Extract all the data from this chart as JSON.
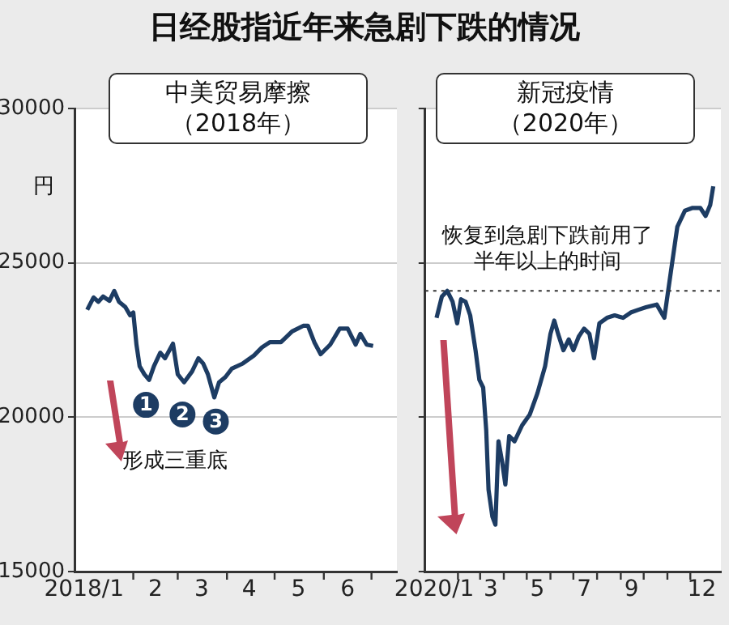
{
  "chart_data": [
    {
      "type": "line",
      "title": "日经股指近年来急剧下跌的情况",
      "subtitle": "中美贸易摩擦（2018年）",
      "ylabel": "円",
      "color": "#1d3c63",
      "x": [
        "2018-01-03",
        "2018-01-07",
        "2018-01-10",
        "2018-01-13",
        "2018-01-17",
        "2018-01-20",
        "2018-01-23",
        "2018-01-27",
        "2018-01-30",
        "2018-02-01",
        "2018-02-03",
        "2018-02-05",
        "2018-02-08",
        "2018-02-11",
        "2018-02-14",
        "2018-02-18",
        "2018-02-21",
        "2018-02-26",
        "2018-03-01",
        "2018-03-05",
        "2018-03-10",
        "2018-03-14",
        "2018-03-17",
        "2018-03-20",
        "2018-03-24",
        "2018-03-27",
        "2018-03-31",
        "2018-04-04",
        "2018-04-11",
        "2018-04-18",
        "2018-04-23",
        "2018-04-28",
        "2018-05-05",
        "2018-05-12",
        "2018-05-19",
        "2018-05-22",
        "2018-05-26",
        "2018-05-30",
        "2018-06-05",
        "2018-06-11",
        "2018-06-16",
        "2018-06-21",
        "2018-06-24",
        "2018-06-28",
        "2018-07-02"
      ],
      "values": [
        23480,
        23880,
        23740,
        23910,
        23770,
        24090,
        23740,
        23570,
        23300,
        23390,
        22350,
        21650,
        21390,
        21210,
        21650,
        22090,
        21910,
        22380,
        21390,
        21130,
        21480,
        21910,
        21740,
        21390,
        20640,
        21130,
        21300,
        21570,
        21740,
        22000,
        22260,
        22430,
        22430,
        22780,
        22960,
        22960,
        22430,
        22040,
        22350,
        22870,
        22870,
        22350,
        22700,
        22350,
        22310
      ],
      "xlim": [
        "2017-12-26",
        "2018-07-17"
      ],
      "xticks": [
        {
          "value": "2018-01-01",
          "label": "2018/1"
        },
        {
          "value": "2018-02-01",
          "label": null
        },
        {
          "value": "2018-02-15",
          "label": "2"
        },
        {
          "value": "2018-03-01",
          "label": null
        },
        {
          "value": "2018-03-16",
          "label": "3"
        },
        {
          "value": "2018-04-01",
          "label": null
        },
        {
          "value": "2018-04-15",
          "label": "4"
        },
        {
          "value": "2018-05-01",
          "label": null
        },
        {
          "value": "2018-05-16",
          "label": "5"
        },
        {
          "value": "2018-06-01",
          "label": null
        },
        {
          "value": "2018-06-16",
          "label": "6"
        },
        {
          "value": "2018-07-01",
          "label": null
        }
      ],
      "ylim": [
        15000,
        30000
      ],
      "yticks": [
        15000,
        20000,
        25000,
        30000
      ],
      "grid": "y",
      "annotations": [
        {
          "text": "1",
          "x": "2018-02-09",
          "y": 20400
        },
        {
          "text": "2",
          "x": "2018-03-04",
          "y": 20090
        },
        {
          "text": "3",
          "x": "2018-03-25",
          "y": 19860
        },
        "形成三重底"
      ]
    },
    {
      "type": "line",
      "subtitle": "新冠疫情（2020年）",
      "color": "#1d3c63",
      "x": [
        "2020-01-04",
        "2020-01-11",
        "2020-01-18",
        "2020-01-25",
        "2020-01-31",
        "2020-02-05",
        "2020-02-11",
        "2020-02-17",
        "2020-02-24",
        "2020-02-29",
        "2020-03-05",
        "2020-03-09",
        "2020-03-12",
        "2020-03-17",
        "2020-03-21",
        "2020-03-25",
        "2020-03-30",
        "2020-04-03",
        "2020-04-08",
        "2020-04-15",
        "2020-04-25",
        "2020-05-05",
        "2020-05-15",
        "2020-05-25",
        "2020-06-01",
        "2020-06-06",
        "2020-06-11",
        "2020-06-18",
        "2020-06-25",
        "2020-07-01",
        "2020-07-08",
        "2020-07-15",
        "2020-07-22",
        "2020-07-28",
        "2020-08-04",
        "2020-08-14",
        "2020-08-24",
        "2020-09-04",
        "2020-09-14",
        "2020-09-24",
        "2020-10-04",
        "2020-10-18",
        "2020-10-28",
        "2020-10-31",
        "2020-11-07",
        "2020-11-14",
        "2020-11-24",
        "2020-12-04",
        "2020-12-14",
        "2020-12-21",
        "2020-12-27",
        "2020-12-31"
      ],
      "values": [
        23220,
        23910,
        24090,
        23740,
        23040,
        23820,
        23740,
        23300,
        22170,
        21210,
        20960,
        19570,
        17650,
        16780,
        16520,
        19220,
        18520,
        17820,
        19390,
        19220,
        19740,
        20090,
        20780,
        21650,
        22700,
        23130,
        22700,
        22170,
        22520,
        22170,
        22610,
        22870,
        22700,
        21910,
        23040,
        23220,
        23300,
        23220,
        23390,
        23480,
        23560,
        23650,
        23220,
        23740,
        24960,
        26170,
        26690,
        26780,
        26780,
        26520,
        26870,
        27480
      ],
      "xlim": [
        "2019-12-20",
        "2021-01-10"
      ],
      "xticks": [
        {
          "value": "2020-01-01",
          "label": "2020/1"
        },
        {
          "value": "2020-02-01",
          "label": null
        },
        {
          "value": "2020-03-01",
          "label": null
        },
        {
          "value": "2020-03-15",
          "label": "3"
        },
        {
          "value": "2020-04-01",
          "label": null
        },
        {
          "value": "2020-05-01",
          "label": null
        },
        {
          "value": "2020-05-15",
          "label": "5"
        },
        {
          "value": "2020-06-01",
          "label": null
        },
        {
          "value": "2020-07-01",
          "label": null
        },
        {
          "value": "2020-07-15",
          "label": "7"
        },
        {
          "value": "2020-08-01",
          "label": null
        },
        {
          "value": "2020-09-01",
          "label": null
        },
        {
          "value": "2020-09-15",
          "label": "9"
        },
        {
          "value": "2020-10-01",
          "label": null
        },
        {
          "value": "2020-11-01",
          "label": null
        },
        {
          "value": "2020-12-01",
          "label": null
        },
        {
          "value": "2020-12-16",
          "label": "12"
        }
      ],
      "ylim": [
        15000,
        30000
      ],
      "yticks": [
        15000,
        20000,
        25000,
        30000
      ],
      "grid": "y",
      "tick_labels": "x",
      "ref_lines": [
        {
          "axis": "y",
          "value": 24090,
          "color": "#333333",
          "line_style": "dotted"
        }
      ],
      "annotations": [
        "恢复到急剧下跌前用了半年以上的时间"
      ]
    }
  ]
}
